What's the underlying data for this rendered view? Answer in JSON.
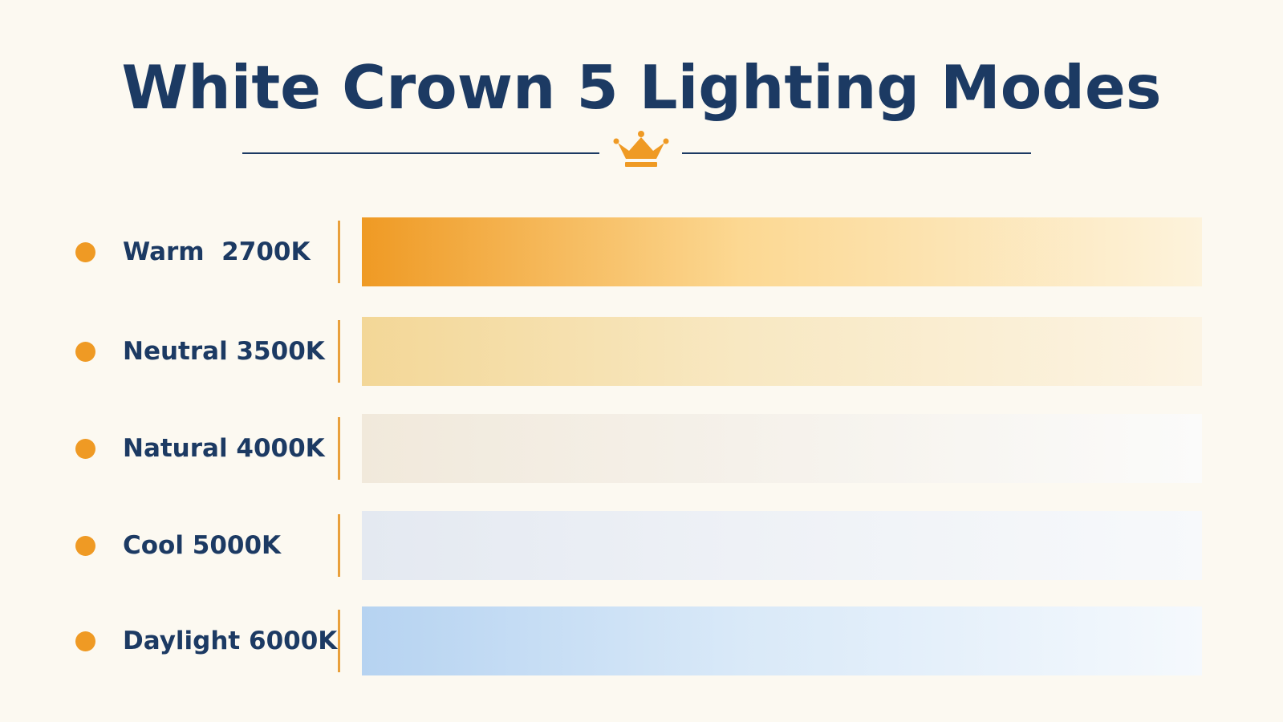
{
  "title": "White Crown 5 Lighting Modes",
  "icons": {
    "header": "crown-icon",
    "bullet": "dot-icon"
  },
  "colors": {
    "title": "#1c3a63",
    "accent": "#ef9a24",
    "background": "#fcf9f1"
  },
  "modes": [
    {
      "label": "Warm  2700K",
      "start_color": "#ef9a24",
      "mid_color": "#fcd892",
      "end_color": "#fdf3dc"
    },
    {
      "label": "Neutral 3500K",
      "start_color": "#f3d797",
      "mid_color": "#f8e8c2",
      "end_color": "#fcf4e4"
    },
    {
      "label": "Natural 4000K",
      "start_color": "#f1e9db",
      "mid_color": "#f5f1ea",
      "end_color": "#fbfbfa"
    },
    {
      "label": "Cool 5000K",
      "start_color": "#e4e9f1",
      "mid_color": "#eef1f6",
      "end_color": "#f7f9fb"
    },
    {
      "label": "Daylight 6000K",
      "start_color": "#b6d3f1",
      "mid_color": "#d9e9f8",
      "end_color": "#f5f9fd"
    }
  ]
}
